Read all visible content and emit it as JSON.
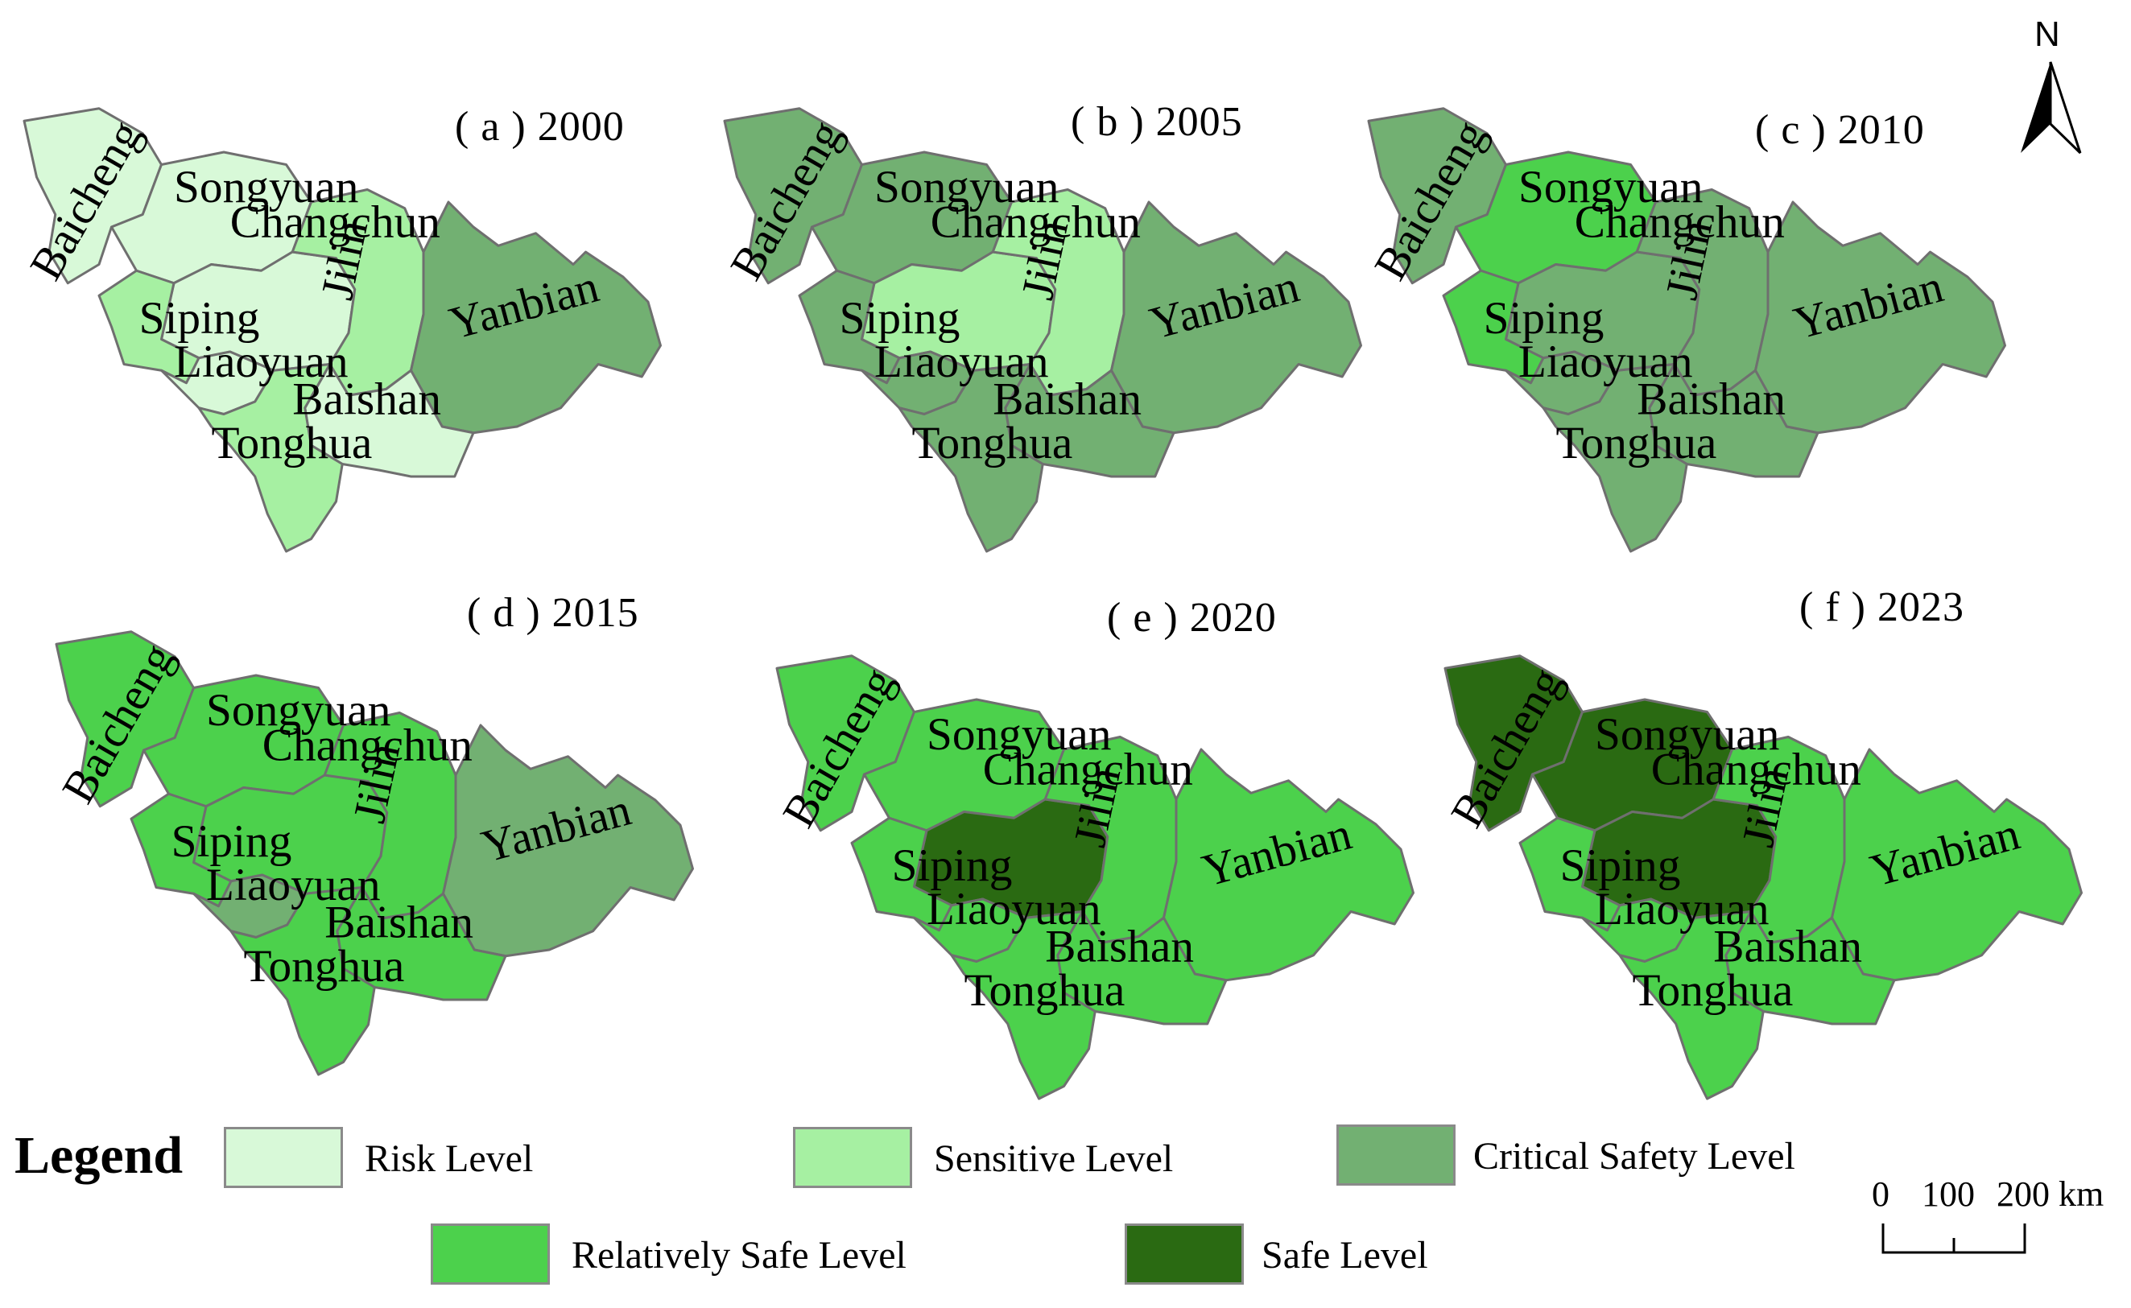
{
  "colors": {
    "risk": "#d8f9d8",
    "sensitive": "#a6f0a2",
    "critical": "#72b072",
    "relatively_safe": "#4cd14c",
    "safe": "#2a6a12"
  },
  "regions": [
    "Baicheng",
    "Songyuan",
    "Changchun",
    "Jilin",
    "Yanbian",
    "Siping",
    "Liaoyuan",
    "Baishan",
    "Tonghua"
  ],
  "panels": [
    {
      "title": "( a ) 2000",
      "levels": {
        "Baicheng": "risk",
        "Songyuan": "risk",
        "Changchun": "risk",
        "Jilin": "sensitive",
        "Yanbian": "critical",
        "Siping": "sensitive",
        "Liaoyuan": "risk",
        "Baishan": "risk",
        "Tonghua": "sensitive"
      }
    },
    {
      "title": "( b ) 2005",
      "levels": {
        "Baicheng": "critical",
        "Songyuan": "critical",
        "Changchun": "sensitive",
        "Jilin": "sensitive",
        "Yanbian": "critical",
        "Siping": "critical",
        "Liaoyuan": "critical",
        "Baishan": "critical",
        "Tonghua": "critical"
      }
    },
    {
      "title": "( c ) 2010",
      "levels": {
        "Baicheng": "critical",
        "Songyuan": "relatively_safe",
        "Changchun": "critical",
        "Jilin": "critical",
        "Yanbian": "critical",
        "Siping": "relatively_safe",
        "Liaoyuan": "critical",
        "Baishan": "critical",
        "Tonghua": "critical"
      }
    },
    {
      "title": "( d ) 2015",
      "levels": {
        "Baicheng": "relatively_safe",
        "Songyuan": "relatively_safe",
        "Changchun": "relatively_safe",
        "Jilin": "relatively_safe",
        "Yanbian": "critical",
        "Siping": "relatively_safe",
        "Liaoyuan": "critical",
        "Baishan": "relatively_safe",
        "Tonghua": "relatively_safe"
      }
    },
    {
      "title": "( e ) 2020",
      "levels": {
        "Baicheng": "relatively_safe",
        "Songyuan": "relatively_safe",
        "Changchun": "safe",
        "Jilin": "relatively_safe",
        "Yanbian": "relatively_safe",
        "Siping": "relatively_safe",
        "Liaoyuan": "relatively_safe",
        "Baishan": "relatively_safe",
        "Tonghua": "relatively_safe"
      }
    },
    {
      "title": "( f ) 2023",
      "levels": {
        "Baicheng": "safe",
        "Songyuan": "safe",
        "Changchun": "safe",
        "Jilin": "relatively_safe",
        "Yanbian": "relatively_safe",
        "Siping": "relatively_safe",
        "Liaoyuan": "relatively_safe",
        "Baishan": "relatively_safe",
        "Tonghua": "relatively_safe"
      }
    }
  ],
  "legend": {
    "title": "Legend",
    "items": [
      {
        "key": "risk",
        "label": "Risk Level"
      },
      {
        "key": "sensitive",
        "label": "Sensitive Level"
      },
      {
        "key": "critical",
        "label": "Critical Safety Level"
      },
      {
        "key": "relatively_safe",
        "label": "Relatively Safe Level"
      },
      {
        "key": "safe",
        "label": "Safe Level"
      }
    ]
  },
  "north_arrow": {
    "label": "N"
  },
  "scale": {
    "ticks": [
      "0",
      "100",
      "200 km"
    ]
  }
}
